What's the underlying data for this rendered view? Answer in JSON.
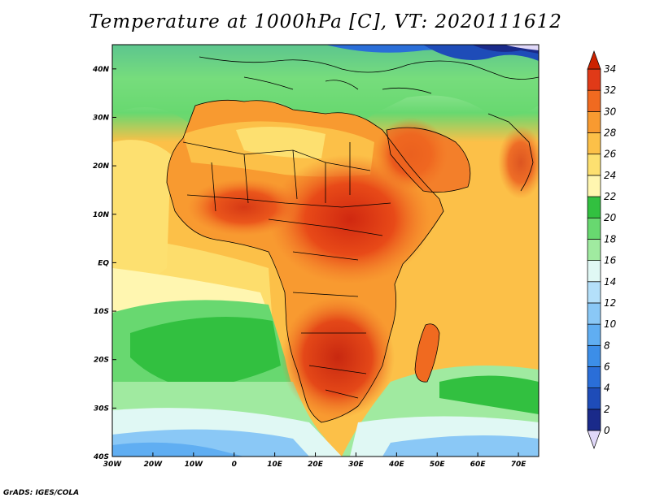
{
  "title": "Temperature at 1000hPa [C], VT: 2020111612",
  "credit": "GrADS: IGES/COLA",
  "map": {
    "lon_range": [
      -30,
      75
    ],
    "lat_range": [
      -40,
      45
    ],
    "lon_ticks": [
      {
        "value": -30,
        "label": "30W"
      },
      {
        "value": -20,
        "label": "20W"
      },
      {
        "value": -10,
        "label": "10W"
      },
      {
        "value": 0,
        "label": "0"
      },
      {
        "value": 10,
        "label": "10E"
      },
      {
        "value": 20,
        "label": "20E"
      },
      {
        "value": 30,
        "label": "30E"
      },
      {
        "value": 40,
        "label": "40E"
      },
      {
        "value": 50,
        "label": "50E"
      },
      {
        "value": 60,
        "label": "60E"
      },
      {
        "value": 70,
        "label": "70E"
      }
    ],
    "lat_ticks": [
      {
        "value": 40,
        "label": "40N"
      },
      {
        "value": 30,
        "label": "30N"
      },
      {
        "value": 20,
        "label": "20N"
      },
      {
        "value": 10,
        "label": "10N"
      },
      {
        "value": 0,
        "label": "EQ"
      },
      {
        "value": -10,
        "label": "10S"
      },
      {
        "value": -20,
        "label": "20S"
      },
      {
        "value": -30,
        "label": "30S"
      },
      {
        "value": -40,
        "label": "40S"
      }
    ]
  },
  "colorbar": {
    "under_color": "#e0d8f8",
    "over_color": "#cc2200",
    "levels": [
      0,
      2,
      4,
      6,
      8,
      10,
      12,
      14,
      16,
      18,
      20,
      22,
      24,
      26,
      28,
      30,
      32,
      34
    ],
    "colors": [
      "#1a2a8a",
      "#1e4cb8",
      "#2a6ed8",
      "#3c8ee8",
      "#60aef2",
      "#8ac8f6",
      "#b4e0fa",
      "#e0f8f4",
      "#a0eaa0",
      "#68d870",
      "#32c040",
      "#fff6b0",
      "#fde070",
      "#fcc048",
      "#f89a30",
      "#f06a20",
      "#e03a18"
    ]
  }
}
